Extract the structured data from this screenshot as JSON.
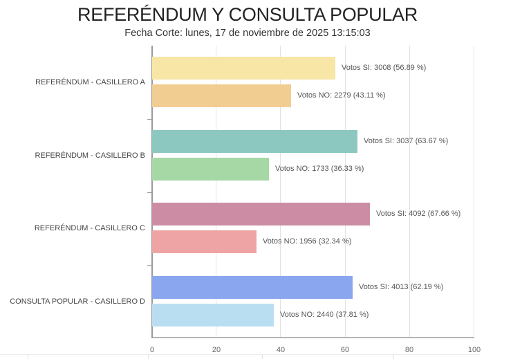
{
  "header": {
    "title": "REFERÉNDUM Y CONSULTA POPULAR",
    "subtitle": "Fecha Corte: lunes, 17 de noviembre de 2025 13:15:03"
  },
  "chart_data": {
    "type": "bar",
    "orientation": "horizontal",
    "title": "REFERÉNDUM Y CONSULTA POPULAR",
    "subtitle": "Fecha Corte: lunes, 17 de noviembre de 2025 13:15:03",
    "xlabel": "",
    "ylabel": "",
    "xlim": [
      0,
      100
    ],
    "x_ticks": [
      "0",
      "20",
      "40",
      "60",
      "80",
      "100"
    ],
    "grid": true,
    "legend": "none",
    "categories": [
      "REFERÉNDUM - CASILLERO A",
      "REFERÉNDUM - CASILLERO B",
      "REFERÉNDUM - CASILLERO C",
      "CONSULTA POPULAR - CASILLERO D"
    ],
    "series": [
      {
        "name": "Votos SI",
        "votes": [
          3008,
          3037,
          4092,
          4013
        ],
        "values": [
          56.89,
          63.67,
          67.66,
          62.19
        ]
      },
      {
        "name": "Votos NO",
        "votes": [
          2279,
          1733,
          1956,
          2440
        ],
        "values": [
          43.11,
          36.33,
          32.34,
          37.81
        ]
      }
    ],
    "bars": [
      {
        "category": "REFERÉNDUM - CASILLERO A",
        "si": {
          "label": "Votos SI: 3008 (56.89 %)",
          "pct": 56.89,
          "color": "#f7e6a6"
        },
        "no": {
          "label": "Votos NO: 2279 (43.11 %)",
          "pct": 43.11,
          "color": "#f1cd92"
        }
      },
      {
        "category": "REFERÉNDUM - CASILLERO B",
        "si": {
          "label": "Votos SI: 3037 (63.67 %)",
          "pct": 63.67,
          "color": "#8cc8bf"
        },
        "no": {
          "label": "Votos NO: 1733 (36.33 %)",
          "pct": 36.33,
          "color": "#a6d8a6"
        }
      },
      {
        "category": "REFERÉNDUM - CASILLERO C",
        "si": {
          "label": "Votos SI: 4092 (67.66 %)",
          "pct": 67.66,
          "color": "#cc8da4"
        },
        "no": {
          "label": "Votos NO: 1956 (32.34 %)",
          "pct": 32.34,
          "color": "#eea4a4"
        }
      },
      {
        "category": "CONSULTA POPULAR - CASILLERO D",
        "si": {
          "label": "Votos SI: 4013 (62.19 %)",
          "pct": 62.19,
          "color": "#8aa6ee"
        },
        "no": {
          "label": "Votos NO: 2440 (37.81 %)",
          "pct": 37.81,
          "color": "#b9def2"
        }
      }
    ]
  }
}
